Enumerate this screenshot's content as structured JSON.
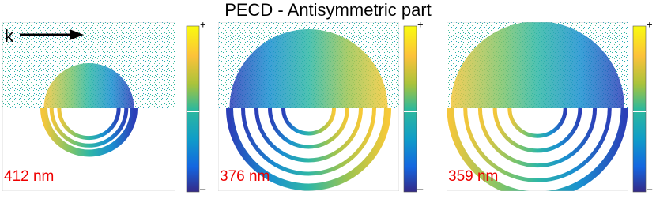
{
  "title": "PECD - Antisymmetric part",
  "arrow_label": "k",
  "panels": [
    {
      "label": "412 nm",
      "colorbar": {
        "max_label": "+",
        "min_label": "–"
      }
    },
    {
      "label": "376 nm",
      "colorbar": {
        "max_label": "+",
        "min_label": "–"
      }
    },
    {
      "label": "359 nm",
      "colorbar": {
        "max_label": "+",
        "min_label": "–"
      }
    }
  ]
}
